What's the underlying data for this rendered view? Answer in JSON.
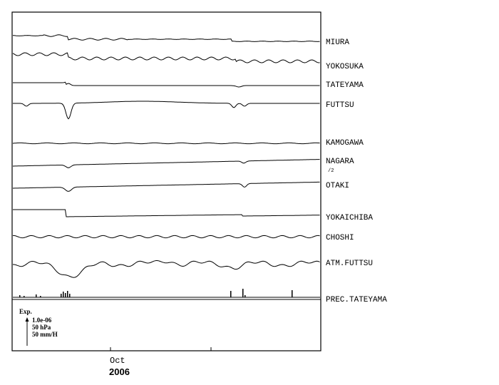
{
  "chart_data": {
    "type": "line",
    "title": "",
    "xlabel": "",
    "ylabel": "",
    "x_tick_labels": [
      "Oct"
    ],
    "x_year_label": "2006",
    "stations": [
      {
        "name": "MIURA",
        "note": ""
      },
      {
        "name": "YOKOSUKA",
        "note": ""
      },
      {
        "name": "TATEYAMA",
        "note": ""
      },
      {
        "name": "FUTTSU",
        "note": ""
      },
      {
        "name": "KAMOGAWA",
        "note": ""
      },
      {
        "name": "NAGARA",
        "note": "/2"
      },
      {
        "name": "OTAKI",
        "note": ""
      },
      {
        "name": "YOKAICHIBA",
        "note": ""
      },
      {
        "name": "CHOSHI",
        "note": ""
      },
      {
        "name": "ATM.FUTTSU",
        "note": ""
      },
      {
        "name": "PREC.TATEYAMA",
        "note": ""
      }
    ],
    "scale_legend": {
      "title": "Exp.",
      "lines": [
        "1.0e-06",
        "50 hPa",
        "50 mm/H"
      ]
    },
    "grid": false,
    "legend_position": "right"
  }
}
